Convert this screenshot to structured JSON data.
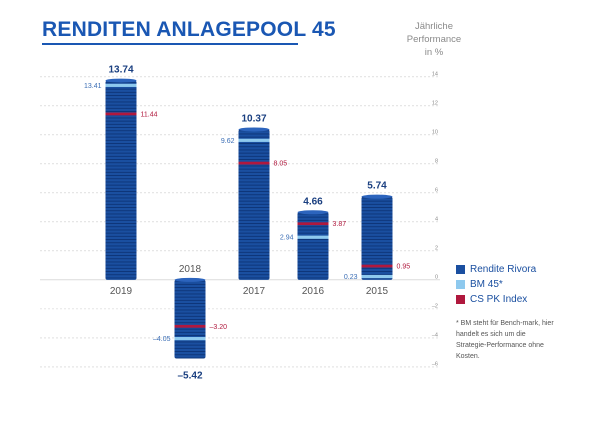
{
  "title": "RENDITEN ANLAGEPOOL 45",
  "unit_label": [
    "Jährliche",
    "Performance",
    "in %"
  ],
  "footnote": "* BM steht für Bench-mark, hier handelt es sich um die Strategie-Performance ohne Kosten.",
  "colors": {
    "rivora": "#1a4fa0",
    "bm45": "#8ec9ee",
    "cspk": "#b0183d",
    "title": "#1a57b3",
    "grid": "#cccccc"
  },
  "chart_data": {
    "type": "bar",
    "categories": [
      "2019",
      "2018",
      "2017",
      "2016",
      "2015"
    ],
    "series": [
      {
        "name": "Rendite Rivora",
        "values": [
          13.74,
          -5.42,
          10.37,
          4.66,
          5.74
        ]
      },
      {
        "name": "BM 45*",
        "values": [
          13.41,
          -4.05,
          9.62,
          2.94,
          0.23
        ]
      },
      {
        "name": "CS PK Index",
        "values": [
          11.44,
          -3.2,
          8.05,
          3.87,
          0.95
        ]
      }
    ],
    "value_labels": {
      "Rendite Rivora": [
        "13.74",
        "–5.42",
        "10.37",
        "4.66",
        "5.74"
      ],
      "BM 45*": [
        "13.41",
        "–4.05",
        "9.62",
        "2.94",
        "0.23"
      ],
      "CS PK Index": [
        "11.44",
        "–3.20",
        "8.05",
        "3.87",
        "0.95"
      ]
    },
    "y_ticks": [
      {
        "value": 14,
        "label": "14"
      },
      {
        "value": 12,
        "label": "12"
      },
      {
        "value": 10,
        "label": "10"
      },
      {
        "value": 8,
        "label": "8"
      },
      {
        "value": 6,
        "label": "6"
      },
      {
        "value": 4,
        "label": "4"
      },
      {
        "value": 2,
        "label": "2"
      },
      {
        "value": 0,
        "label": "0"
      },
      {
        "value": -2,
        "label": "–2"
      },
      {
        "value": -4,
        "label": "–4"
      },
      {
        "value": -6,
        "label": "–6"
      }
    ],
    "ylim": [
      -6,
      14
    ],
    "grid": true,
    "legend_position": "right"
  }
}
